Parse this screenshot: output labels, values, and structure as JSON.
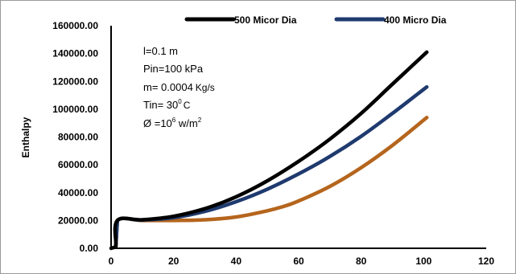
{
  "chart_data": {
    "type": "line",
    "title": "",
    "xlabel": "",
    "ylabel": "Enthalpy",
    "xlim": [
      0,
      120
    ],
    "ylim": [
      0,
      160000
    ],
    "x_ticks": [
      "0",
      "20",
      "40",
      "60",
      "80",
      "100",
      "120"
    ],
    "y_ticks": [
      "0.00",
      "20000.00",
      "40000.00",
      "60000.00",
      "80000.00",
      "100000.00",
      "120000.00",
      "140000.00",
      "160000.00"
    ],
    "x_tick_values": [
      0,
      20,
      40,
      60,
      80,
      100,
      120
    ],
    "y_tick_values": [
      0,
      20000,
      40000,
      60000,
      80000,
      100000,
      120000,
      140000,
      160000
    ],
    "grid": false,
    "legend_position": "top",
    "legend_labels": [
      "500 Micor Dia",
      "400 Micro Dia"
    ],
    "annotations": {
      "length": "l=0.1 m",
      "pressure": "Pin=100 kPa",
      "mass_flow_prefix": "m= 0.0004",
      "mass_flow_unit": "Kg/s",
      "temp_prefix": "Tin= 30",
      "temp_sup": "0",
      "temp_unit": "C",
      "flux_prefix": "Ø =10",
      "flux_sup1": "6",
      "flux_unit": " w/m",
      "flux_sup2": "2"
    },
    "series": [
      {
        "name": "500 Micor Dia",
        "color": "#000000",
        "x": [
          0,
          1.5,
          2,
          10,
          20,
          30,
          40,
          50,
          60,
          70,
          80,
          90,
          101
        ],
        "y": [
          0,
          1000,
          20000,
          20500,
          23000,
          28500,
          37000,
          48500,
          62500,
          78500,
          97000,
          118000,
          141000
        ]
      },
      {
        "name": "400 Micro Dia",
        "color": "#1f3a6e",
        "x": [
          1.5,
          2,
          10,
          20,
          30,
          40,
          50,
          60,
          70,
          80,
          90,
          101
        ],
        "y": [
          1000,
          20000,
          20300,
          22000,
          26500,
          33500,
          42500,
          53500,
          66000,
          80500,
          97000,
          116000
        ]
      },
      {
        "color": "#b5651d",
        "x": [
          1.5,
          2,
          10,
          20,
          30,
          40,
          50,
          55,
          60,
          70,
          80,
          90,
          101
        ],
        "y": [
          1000,
          20000,
          20000,
          20000,
          20500,
          22500,
          27000,
          30000,
          34000,
          44500,
          58000,
          74000,
          94000
        ]
      }
    ]
  }
}
